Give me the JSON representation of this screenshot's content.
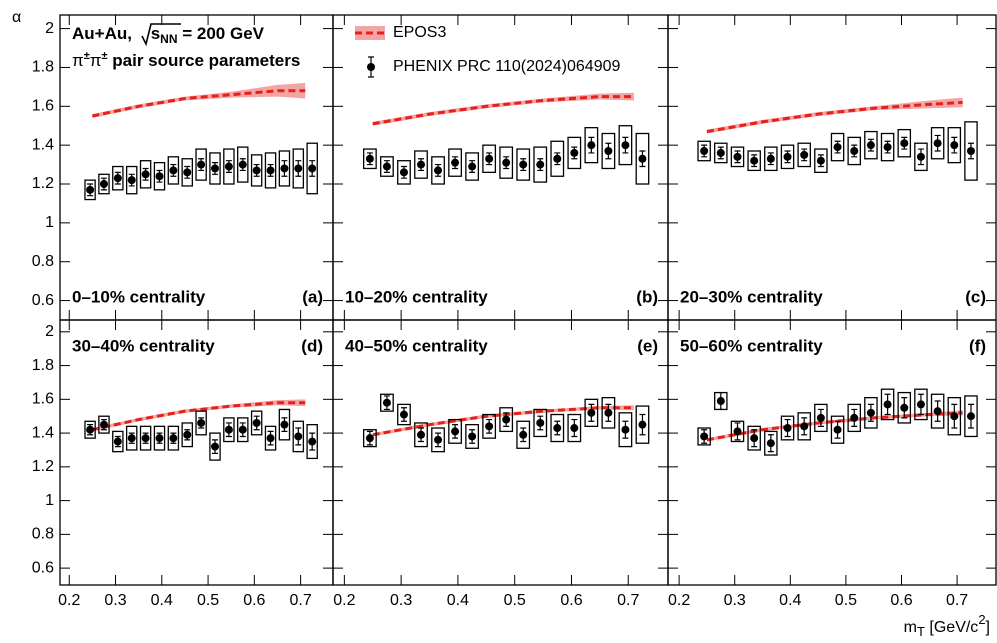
{
  "figure": {
    "y_label": "α",
    "x_label": {
      "main": "m",
      "sub": "T",
      "unit": " [GeV/c",
      "sup": "2",
      "close": "]"
    },
    "system": {
      "pre": "Au+Au, ",
      "s": "s",
      "sub": "NN",
      "post": " = 200 GeV"
    },
    "pair": {
      "p1": "π",
      "s1": "±",
      "p2": "π",
      "s2": "±",
      "post": " pair source parameters"
    },
    "legend": [
      {
        "name": "EPOS3",
        "color": "#e8201a",
        "band_color": "#f4a4a4"
      },
      {
        "name": "PHENIX PRC 110(2024)064909",
        "color": "#000000"
      }
    ]
  },
  "chart_data": [
    {
      "type": "scatter",
      "label": "0–10% centrality",
      "tag": "(a)",
      "x": [
        0.245,
        0.275,
        0.305,
        0.335,
        0.365,
        0.395,
        0.425,
        0.455,
        0.485,
        0.515,
        0.545,
        0.575,
        0.605,
        0.635,
        0.665,
        0.695,
        0.725
      ],
      "values": [
        1.17,
        1.2,
        1.23,
        1.22,
        1.25,
        1.24,
        1.27,
        1.26,
        1.3,
        1.28,
        1.29,
        1.3,
        1.27,
        1.27,
        1.28,
        1.28,
        1.28
      ],
      "stat": [
        0.03,
        0.03,
        0.03,
        0.03,
        0.03,
        0.03,
        0.03,
        0.03,
        0.03,
        0.03,
        0.03,
        0.03,
        0.03,
        0.03,
        0.04,
        0.04,
        0.04
      ],
      "sys": [
        0.05,
        0.05,
        0.06,
        0.07,
        0.07,
        0.07,
        0.07,
        0.07,
        0.08,
        0.08,
        0.09,
        0.09,
        0.08,
        0.09,
        0.09,
        0.1,
        0.13
      ],
      "model": {
        "x": [
          0.25,
          0.35,
          0.45,
          0.55,
          0.65,
          0.71
        ],
        "values": [
          1.55,
          1.6,
          1.64,
          1.66,
          1.68,
          1.68
        ],
        "band": [
          0.01,
          0.01,
          0.01,
          0.015,
          0.03,
          0.04
        ]
      },
      "xlim": [
        0.18,
        0.77
      ],
      "ylim": [
        0.5,
        2.07
      ],
      "xticks": [
        0.2,
        0.3,
        0.4,
        0.5,
        0.6,
        0.7
      ],
      "yticks": [
        0.6,
        0.8,
        1,
        1.2,
        1.4,
        1.6,
        1.8,
        2
      ]
    },
    {
      "type": "scatter",
      "label": "10–20% centrality",
      "tag": "(b)",
      "x": [
        0.245,
        0.275,
        0.305,
        0.335,
        0.365,
        0.395,
        0.425,
        0.455,
        0.485,
        0.515,
        0.545,
        0.575,
        0.605,
        0.635,
        0.665,
        0.695,
        0.725
      ],
      "values": [
        1.33,
        1.29,
        1.26,
        1.3,
        1.27,
        1.31,
        1.29,
        1.33,
        1.31,
        1.3,
        1.3,
        1.33,
        1.36,
        1.4,
        1.37,
        1.4,
        1.33
      ],
      "stat": [
        0.03,
        0.03,
        0.03,
        0.03,
        0.03,
        0.03,
        0.03,
        0.03,
        0.03,
        0.03,
        0.03,
        0.03,
        0.03,
        0.04,
        0.04,
        0.04,
        0.04
      ],
      "sys": [
        0.05,
        0.05,
        0.06,
        0.07,
        0.07,
        0.07,
        0.07,
        0.07,
        0.08,
        0.08,
        0.09,
        0.09,
        0.08,
        0.09,
        0.09,
        0.1,
        0.13
      ],
      "model": {
        "x": [
          0.25,
          0.35,
          0.45,
          0.55,
          0.65,
          0.71
        ],
        "values": [
          1.51,
          1.56,
          1.6,
          1.63,
          1.65,
          1.65
        ],
        "band": [
          0.01,
          0.01,
          0.01,
          0.01,
          0.015,
          0.02
        ]
      },
      "xlim": [
        0.18,
        0.77
      ],
      "ylim": [
        0.5,
        2.07
      ],
      "xticks": [
        0.2,
        0.3,
        0.4,
        0.5,
        0.6,
        0.7
      ],
      "yticks": [
        0.6,
        0.8,
        1,
        1.2,
        1.4,
        1.6,
        1.8,
        2
      ]
    },
    {
      "type": "scatter",
      "label": "20–30% centrality",
      "tag": "(c)",
      "x": [
        0.245,
        0.275,
        0.305,
        0.335,
        0.365,
        0.395,
        0.425,
        0.455,
        0.485,
        0.515,
        0.545,
        0.575,
        0.605,
        0.635,
        0.665,
        0.695,
        0.725
      ],
      "values": [
        1.37,
        1.36,
        1.34,
        1.32,
        1.33,
        1.34,
        1.35,
        1.32,
        1.39,
        1.37,
        1.4,
        1.39,
        1.41,
        1.34,
        1.41,
        1.4,
        1.37
      ],
      "stat": [
        0.03,
        0.03,
        0.03,
        0.03,
        0.03,
        0.03,
        0.03,
        0.03,
        0.03,
        0.03,
        0.03,
        0.03,
        0.03,
        0.04,
        0.04,
        0.04,
        0.04
      ],
      "sys": [
        0.05,
        0.05,
        0.05,
        0.05,
        0.06,
        0.06,
        0.06,
        0.06,
        0.07,
        0.07,
        0.07,
        0.07,
        0.07,
        0.07,
        0.08,
        0.09,
        0.15
      ],
      "model": {
        "x": [
          0.25,
          0.35,
          0.45,
          0.55,
          0.65,
          0.71
        ],
        "values": [
          1.47,
          1.52,
          1.56,
          1.59,
          1.61,
          1.62
        ],
        "band": [
          0.01,
          0.01,
          0.01,
          0.01,
          0.02,
          0.025
        ]
      },
      "xlim": [
        0.18,
        0.77
      ],
      "ylim": [
        0.5,
        2.07
      ],
      "xticks": [
        0.2,
        0.3,
        0.4,
        0.5,
        0.6,
        0.7
      ],
      "yticks": [
        0.6,
        0.8,
        1,
        1.2,
        1.4,
        1.6,
        1.8,
        2
      ]
    },
    {
      "type": "scatter",
      "label": "30–40% centrality",
      "tag": "(d)",
      "x": [
        0.245,
        0.275,
        0.305,
        0.335,
        0.365,
        0.395,
        0.425,
        0.455,
        0.485,
        0.515,
        0.545,
        0.575,
        0.605,
        0.635,
        0.665,
        0.695,
        0.725
      ],
      "values": [
        1.42,
        1.45,
        1.35,
        1.37,
        1.37,
        1.37,
        1.37,
        1.39,
        1.46,
        1.32,
        1.42,
        1.42,
        1.46,
        1.37,
        1.45,
        1.38,
        1.35
      ],
      "stat": [
        0.03,
        0.03,
        0.03,
        0.03,
        0.03,
        0.03,
        0.03,
        0.03,
        0.03,
        0.04,
        0.04,
        0.04,
        0.04,
        0.04,
        0.04,
        0.05,
        0.05
      ],
      "sys": [
        0.05,
        0.05,
        0.06,
        0.07,
        0.07,
        0.07,
        0.07,
        0.07,
        0.07,
        0.08,
        0.07,
        0.07,
        0.07,
        0.07,
        0.09,
        0.09,
        0.1
      ],
      "model": {
        "x": [
          0.25,
          0.35,
          0.45,
          0.55,
          0.65,
          0.71
        ],
        "values": [
          1.42,
          1.48,
          1.53,
          1.56,
          1.58,
          1.58
        ],
        "band": [
          0.01,
          0.01,
          0.01,
          0.01,
          0.015,
          0.02
        ]
      },
      "xlim": [
        0.18,
        0.77
      ],
      "ylim": [
        0.5,
        2.07
      ],
      "xticks": [
        0.2,
        0.3,
        0.4,
        0.5,
        0.6,
        0.7
      ],
      "yticks": [
        0.6,
        0.8,
        1,
        1.2,
        1.4,
        1.6,
        1.8,
        2
      ]
    },
    {
      "type": "scatter",
      "label": "40–50% centrality",
      "tag": "(e)",
      "x": [
        0.245,
        0.275,
        0.305,
        0.335,
        0.365,
        0.395,
        0.425,
        0.455,
        0.485,
        0.515,
        0.545,
        0.575,
        0.605,
        0.635,
        0.665,
        0.695,
        0.725
      ],
      "values": [
        1.37,
        1.58,
        1.51,
        1.39,
        1.36,
        1.41,
        1.38,
        1.44,
        1.48,
        1.39,
        1.46,
        1.43,
        1.43,
        1.52,
        1.52,
        1.42,
        1.45
      ],
      "stat": [
        0.04,
        0.04,
        0.04,
        0.04,
        0.04,
        0.04,
        0.04,
        0.04,
        0.04,
        0.04,
        0.04,
        0.04,
        0.05,
        0.05,
        0.05,
        0.05,
        0.06
      ],
      "sys": [
        0.05,
        0.05,
        0.06,
        0.07,
        0.07,
        0.07,
        0.07,
        0.07,
        0.07,
        0.08,
        0.08,
        0.08,
        0.08,
        0.08,
        0.09,
        0.1,
        0.11
      ],
      "model": {
        "x": [
          0.25,
          0.35,
          0.45,
          0.55,
          0.65,
          0.71
        ],
        "values": [
          1.39,
          1.45,
          1.5,
          1.53,
          1.55,
          1.55
        ],
        "band": [
          0.01,
          0.01,
          0.01,
          0.01,
          0.01,
          0.015
        ]
      },
      "xlim": [
        0.18,
        0.77
      ],
      "ylim": [
        0.5,
        2.07
      ],
      "xticks": [
        0.2,
        0.3,
        0.4,
        0.5,
        0.6,
        0.7
      ],
      "yticks": [
        0.6,
        0.8,
        1,
        1.2,
        1.4,
        1.6,
        1.8,
        2
      ]
    },
    {
      "type": "scatter",
      "label": "50–60% centrality",
      "tag": "(f)",
      "x": [
        0.245,
        0.275,
        0.305,
        0.335,
        0.365,
        0.395,
        0.425,
        0.455,
        0.485,
        0.515,
        0.545,
        0.575,
        0.605,
        0.635,
        0.665,
        0.695,
        0.725
      ],
      "values": [
        1.38,
        1.59,
        1.41,
        1.37,
        1.34,
        1.43,
        1.44,
        1.49,
        1.42,
        1.49,
        1.52,
        1.57,
        1.55,
        1.57,
        1.53,
        1.5,
        1.5
      ],
      "stat": [
        0.04,
        0.05,
        0.05,
        0.05,
        0.05,
        0.05,
        0.05,
        0.05,
        0.05,
        0.05,
        0.05,
        0.06,
        0.06,
        0.06,
        0.06,
        0.07,
        0.07
      ],
      "sys": [
        0.05,
        0.05,
        0.06,
        0.07,
        0.07,
        0.07,
        0.08,
        0.08,
        0.08,
        0.08,
        0.09,
        0.09,
        0.09,
        0.09,
        0.1,
        0.11,
        0.12
      ],
      "model": {
        "x": [
          0.25,
          0.35,
          0.45,
          0.55,
          0.65,
          0.71
        ],
        "values": [
          1.36,
          1.42,
          1.46,
          1.49,
          1.51,
          1.52
        ],
        "band": [
          0.01,
          0.01,
          0.01,
          0.01,
          0.01,
          0.015
        ]
      },
      "xlim": [
        0.18,
        0.77
      ],
      "ylim": [
        0.5,
        2.07
      ],
      "xticks": [
        0.2,
        0.3,
        0.4,
        0.5,
        0.6,
        0.7
      ],
      "yticks": [
        0.6,
        0.8,
        1,
        1.2,
        1.4,
        1.6,
        1.8,
        2
      ]
    }
  ]
}
